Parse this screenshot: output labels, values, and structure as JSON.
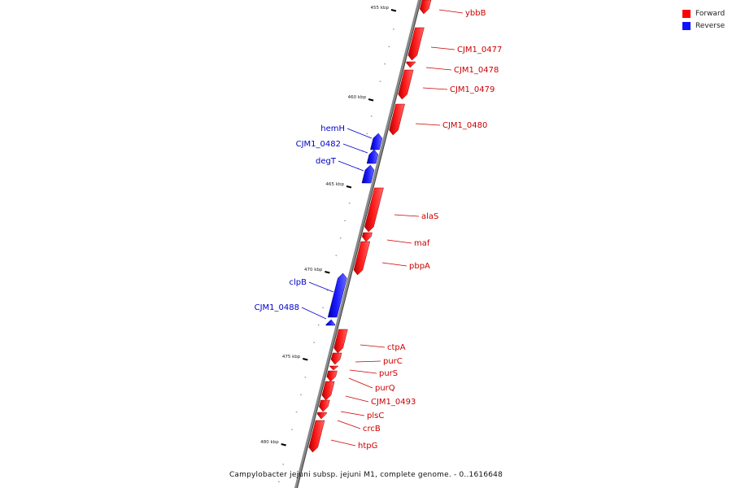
{
  "caption": "Campylobacter jejuni subsp. jejuni M1, complete genome. - 0..1616648",
  "legend": [
    {
      "label": "Forward",
      "color": "#ff0000"
    },
    {
      "label": "Reverse",
      "color": "#1010ff"
    }
  ],
  "scale_labels": [
    "455 kbp",
    "460 kbp",
    "465 kbp",
    "470 kbp",
    "475 kbp",
    "480 kbp"
  ],
  "genes": [
    {
      "name": "ybbB",
      "strand": "forward"
    },
    {
      "name": "CJM1_0477",
      "strand": "forward"
    },
    {
      "name": "CJM1_0478",
      "strand": "forward"
    },
    {
      "name": "CJM1_0479",
      "strand": "forward"
    },
    {
      "name": "CJM1_0480",
      "strand": "forward"
    },
    {
      "name": "hemH",
      "strand": "reverse"
    },
    {
      "name": "CJM1_0482",
      "strand": "reverse"
    },
    {
      "name": "degT",
      "strand": "reverse"
    },
    {
      "name": "alaS",
      "strand": "forward"
    },
    {
      "name": "maf",
      "strand": "forward"
    },
    {
      "name": "pbpA",
      "strand": "forward"
    },
    {
      "name": "clpB",
      "strand": "reverse"
    },
    {
      "name": "CJM1_0488",
      "strand": "reverse"
    },
    {
      "name": "ctpA",
      "strand": "forward"
    },
    {
      "name": "purC",
      "strand": "forward"
    },
    {
      "name": "purS",
      "strand": "forward"
    },
    {
      "name": "purQ",
      "strand": "forward"
    },
    {
      "name": "CJM1_0493",
      "strand": "forward"
    },
    {
      "name": "plsC",
      "strand": "forward"
    },
    {
      "name": "crcB",
      "strand": "forward"
    },
    {
      "name": "htpG",
      "strand": "forward"
    }
  ]
}
